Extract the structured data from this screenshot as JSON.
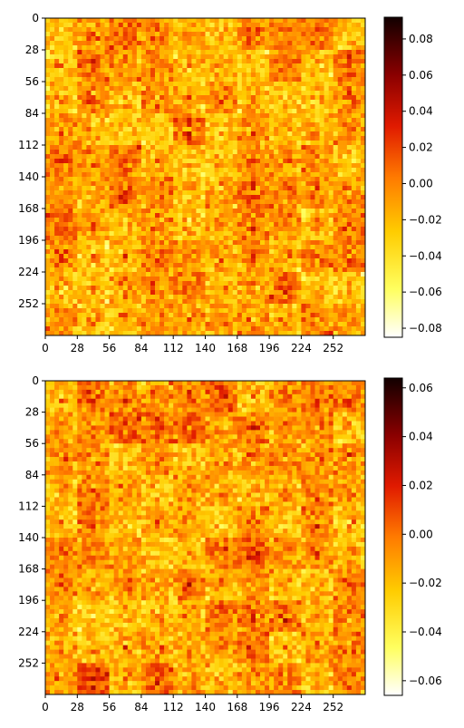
{
  "chart_data": [
    {
      "type": "heatmap",
      "colormap": "hot_r",
      "grid": false,
      "xlim": [
        0,
        280
      ],
      "ylim": [
        0,
        280
      ],
      "x_ticks": [
        "0",
        "28",
        "56",
        "84",
        "112",
        "140",
        "168",
        "196",
        "224",
        "252"
      ],
      "y_ticks": [
        "0",
        "28",
        "56",
        "84",
        "112",
        "140",
        "168",
        "196",
        "224",
        "252"
      ],
      "tiles_per_side": 10,
      "tile_size": 28,
      "colorbar": {
        "range": [
          -0.085,
          0.092
        ],
        "ticks": [
          "0.08",
          "0.06",
          "0.04",
          "0.02",
          "0.00",
          "−0.02",
          "−0.04",
          "−0.06",
          "−0.08"
        ]
      }
    },
    {
      "type": "heatmap",
      "colormap": "hot_r",
      "grid": false,
      "xlim": [
        0,
        280
      ],
      "ylim": [
        0,
        280
      ],
      "x_ticks": [
        "0",
        "28",
        "56",
        "84",
        "112",
        "140",
        "168",
        "196",
        "224",
        "252"
      ],
      "y_ticks": [
        "0",
        "28",
        "56",
        "84",
        "112",
        "140",
        "168",
        "196",
        "224",
        "252"
      ],
      "tiles_per_side": 10,
      "tile_size": 28,
      "colorbar": {
        "range": [
          -0.066,
          0.064
        ],
        "ticks": [
          "0.06",
          "0.04",
          "0.02",
          "0.00",
          "−0.02",
          "−0.04",
          "−0.06"
        ]
      }
    }
  ]
}
